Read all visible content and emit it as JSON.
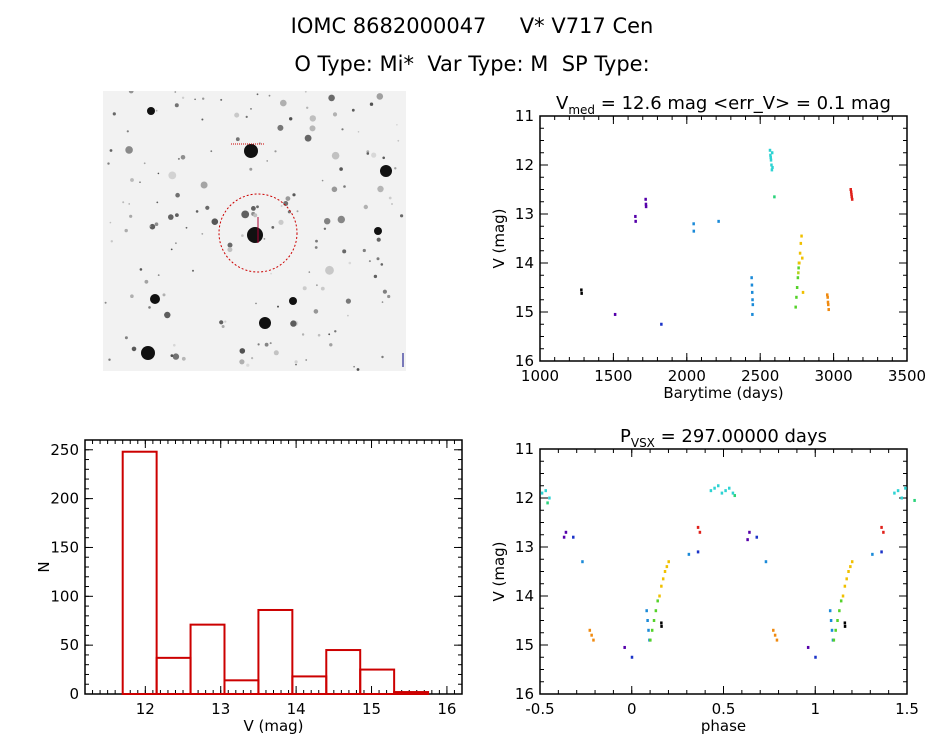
{
  "header": {
    "line1": "IOMC 8682000047     V* V717 Cen",
    "line2": "O Type: Mi*  Var Type: M  SP Type:"
  },
  "image_panel": {
    "top_left_label": "",
    "bottom_label": ""
  },
  "colors": {
    "frame": "#000000",
    "histogram": "#cc0000",
    "circle": "#cc0000",
    "palette": [
      "#000000",
      "#5500aa",
      "#1b33c8",
      "#1b8ad8",
      "#2ed3d3",
      "#2ad27a",
      "#55d22a",
      "#b5d21a",
      "#f0c000",
      "#f08a10",
      "#e0201a"
    ]
  },
  "chart_data": [
    {
      "type": "scatter",
      "title_main": "V",
      "title_sub": "med",
      "title_rest": " = 12.6 mag <err_V> = 0.1 mag",
      "xlabel": "Barytime (days)",
      "ylabel": "V (mag)",
      "xlim": [
        1000,
        3500
      ],
      "ylim": [
        16,
        11
      ],
      "xticks": [
        1000,
        1500,
        2000,
        2500,
        3000,
        3500
      ],
      "yticks": [
        11,
        12,
        13,
        14,
        15,
        16
      ],
      "groups": [
        {
          "c": 0,
          "x": [
            1280,
            1282
          ],
          "y": [
            14.55,
            14.62
          ]
        },
        {
          "c": 1,
          "x": [
            1510
          ],
          "y": [
            15.05
          ]
        },
        {
          "c": 2,
          "x": [
            1825
          ],
          "y": [
            15.25
          ]
        },
        {
          "c": 1,
          "x": [
            1648,
            1650
          ],
          "y": [
            13.05,
            13.15
          ]
        },
        {
          "c": 1,
          "x": [
            1718,
            1720,
            1721
          ],
          "y": [
            12.7,
            12.8,
            12.85
          ]
        },
        {
          "c": 3,
          "x": [
            2045,
            2046
          ],
          "y": [
            13.2,
            13.35
          ]
        },
        {
          "c": 3,
          "x": [
            2215
          ],
          "y": [
            13.15
          ]
        },
        {
          "c": 3,
          "x": [
            2440,
            2442,
            2444,
            2446,
            2448
          ],
          "y": [
            14.3,
            14.45,
            14.6,
            14.75,
            14.85
          ]
        },
        {
          "c": 3,
          "x": [
            2445
          ],
          "y": [
            15.05
          ]
        },
        {
          "c": 4,
          "x": [
            2565,
            2568,
            2570,
            2572,
            2575,
            2578,
            2580,
            2582
          ],
          "y": [
            11.7,
            11.8,
            11.85,
            11.9,
            12.0,
            12.1,
            11.75,
            12.05
          ]
        },
        {
          "c": 5,
          "x": [
            2595
          ],
          "y": [
            12.65
          ]
        },
        {
          "c": 6,
          "x": [
            2740,
            2745,
            2750,
            2755,
            2760
          ],
          "y": [
            14.9,
            14.7,
            14.5,
            14.3,
            14.1
          ]
        },
        {
          "c": 7,
          "x": [
            2758,
            2762
          ],
          "y": [
            14.2,
            14.0
          ]
        },
        {
          "c": 8,
          "x": [
            2765,
            2770,
            2775,
            2780,
            2785,
            2790
          ],
          "y": [
            14.0,
            13.8,
            13.6,
            13.45,
            13.9,
            14.6
          ]
        },
        {
          "c": 9,
          "x": [
            2955,
            2958,
            2960,
            2962,
            2965
          ],
          "y": [
            14.65,
            14.7,
            14.8,
            14.85,
            14.95
          ]
        },
        {
          "c": 10,
          "x": [
            3115,
            3118,
            3120,
            3122,
            3125
          ],
          "y": [
            12.5,
            12.55,
            12.6,
            12.65,
            12.7
          ]
        }
      ]
    },
    {
      "type": "bar",
      "xlabel": "V (mag)",
      "ylabel": "N",
      "xlim": [
        11.2,
        16.2
      ],
      "ylim": [
        0,
        260
      ],
      "xticks": [
        12,
        13,
        14,
        15,
        16
      ],
      "yticks": [
        0,
        50,
        100,
        150,
        200,
        250
      ],
      "bin_edges": [
        11.7,
        12.15,
        12.6,
        13.05,
        13.5,
        13.95,
        14.4,
        14.85,
        15.3,
        15.75
      ],
      "values": [
        248,
        37,
        71,
        14,
        86,
        18,
        45,
        25,
        2
      ]
    },
    {
      "type": "scatter",
      "title_main": "P",
      "title_sub": "VSX",
      "title_rest": " = 297.00000 days",
      "xlabel": "phase",
      "ylabel": "V (mag)",
      "xlim": [
        -0.5,
        1.5
      ],
      "ylim": [
        16,
        11
      ],
      "xticks": [
        -0.5,
        0.0,
        0.5,
        1.0,
        1.5
      ],
      "yticks": [
        11,
        12,
        13,
        14,
        15,
        16
      ],
      "groups": [
        {
          "c": 4,
          "x": [
            -0.49,
            -0.47,
            -0.45,
            0.43,
            0.45,
            0.47,
            0.49,
            0.51,
            0.53,
            0.55,
            1.43,
            1.45,
            1.47,
            1.49
          ],
          "y": [
            11.9,
            11.85,
            12.0,
            11.85,
            11.8,
            11.75,
            11.9,
            11.85,
            11.8,
            11.9,
            11.9,
            11.85,
            12.0,
            11.8
          ]
        },
        {
          "c": 5,
          "x": [
            -0.46,
            0.56,
            1.54
          ],
          "y": [
            12.1,
            11.95,
            12.05
          ]
        },
        {
          "c": 1,
          "x": [
            -0.37,
            -0.36,
            0.63,
            0.64
          ],
          "y": [
            12.8,
            12.7,
            12.85,
            12.7
          ]
        },
        {
          "c": 2,
          "x": [
            -0.32,
            0.36,
            0.68,
            1.36
          ],
          "y": [
            12.8,
            13.1,
            12.8,
            13.1
          ]
        },
        {
          "c": 3,
          "x": [
            -0.27,
            0.31,
            0.73,
            1.31
          ],
          "y": [
            13.3,
            13.15,
            13.3,
            13.15
          ]
        },
        {
          "c": 10,
          "x": [
            0.36,
            0.37,
            1.36,
            1.37
          ],
          "y": [
            12.6,
            12.7,
            12.6,
            12.7
          ]
        },
        {
          "c": 9,
          "x": [
            -0.23,
            -0.22,
            -0.21,
            0.77,
            0.78,
            0.79
          ],
          "y": [
            14.7,
            14.8,
            14.9,
            14.7,
            14.8,
            14.9
          ]
        },
        {
          "c": 1,
          "x": [
            -0.04,
            0.96
          ],
          "y": [
            15.05,
            15.05
          ]
        },
        {
          "c": 2,
          "x": [
            0.0,
            1.0
          ],
          "y": [
            15.25,
            15.25
          ]
        },
        {
          "c": 3,
          "x": [
            0.08,
            0.085,
            0.09,
            0.095,
            1.08,
            1.085,
            1.09,
            1.095
          ],
          "y": [
            14.3,
            14.5,
            14.7,
            14.9,
            14.3,
            14.5,
            14.7,
            14.9
          ]
        },
        {
          "c": 6,
          "x": [
            0.1,
            0.11,
            0.12,
            0.13,
            0.14,
            1.1,
            1.11,
            1.12,
            1.13,
            1.14
          ],
          "y": [
            14.9,
            14.7,
            14.5,
            14.3,
            14.1,
            14.9,
            14.7,
            14.5,
            14.3,
            14.1
          ]
        },
        {
          "c": 0,
          "x": [
            0.16,
            0.161,
            1.16,
            1.161
          ],
          "y": [
            14.55,
            14.62,
            14.55,
            14.62
          ]
        },
        {
          "c": 8,
          "x": [
            0.15,
            0.16,
            0.17,
            0.18,
            0.19,
            0.2,
            1.15,
            1.16,
            1.17,
            1.18,
            1.19,
            1.2
          ],
          "y": [
            14.0,
            13.8,
            13.65,
            13.5,
            13.4,
            13.3,
            14.0,
            13.8,
            13.65,
            13.5,
            13.4,
            13.3
          ]
        }
      ]
    }
  ]
}
